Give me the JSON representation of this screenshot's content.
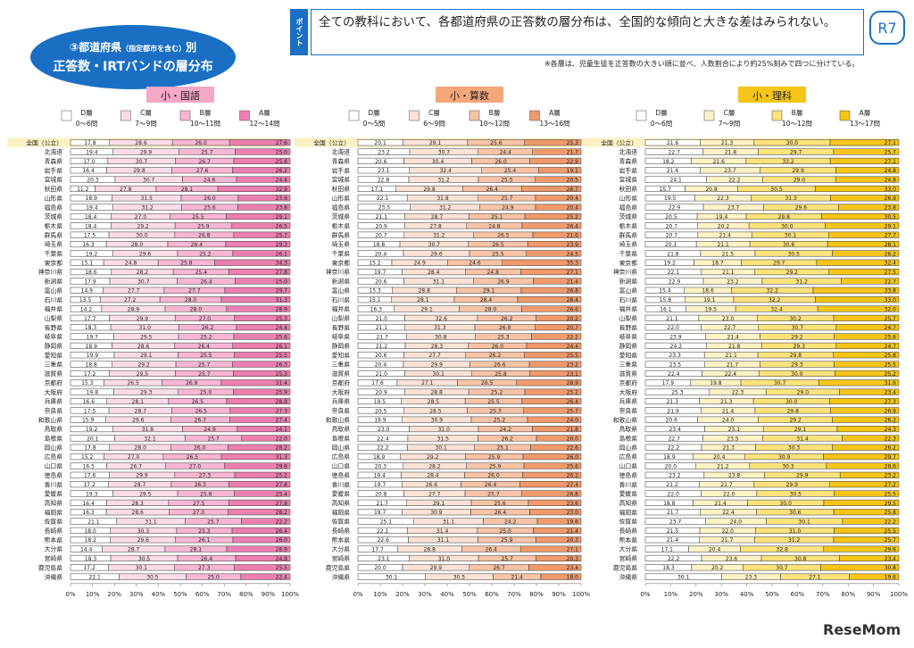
{
  "header": {
    "badge_line1_num": "③",
    "badge_line1_main": "都道府県",
    "badge_line1_small": "（指定都市を含む）",
    "badge_line1_end": "別",
    "badge_line2": "正答数・IRTバンドの層分布",
    "point_label": "ポイント",
    "point_text": "全ての教科において、各都道府県の正答数の層分布は、全国的な傾向と大きな差はみられない。",
    "badge_r7": "R7",
    "footnote": "※各層は、児童生徒を正答数の大きい順に並べ、人数割合により約25%刻みで四つに分けている。",
    "logo": "ReseMom"
  },
  "prefectures": [
    "全国（公立）",
    "北海道",
    "青森県",
    "岩手県",
    "宮城県",
    "秋田県",
    "山形県",
    "福島県",
    "茨城県",
    "栃木県",
    "群馬県",
    "埼玉県",
    "千葉県",
    "東京都",
    "神奈川県",
    "新潟県",
    "富山県",
    "石川県",
    "福井県",
    "山梨県",
    "長野県",
    "岐阜県",
    "静岡県",
    "愛知県",
    "三重県",
    "滋賀県",
    "京都府",
    "大阪府",
    "兵庫県",
    "奈良県",
    "和歌山県",
    "鳥取県",
    "島根県",
    "岡山県",
    "広島県",
    "山口県",
    "徳島県",
    "香川県",
    "愛媛県",
    "高知県",
    "福岡県",
    "佐賀県",
    "長崎県",
    "熊本県",
    "大分県",
    "宮崎県",
    "鹿児島県",
    "沖縄県"
  ],
  "axis_ticks": [
    "0%",
    "10%",
    "20%",
    "30%",
    "40%",
    "50%",
    "60%",
    "70%",
    "80%",
    "90%",
    "100%"
  ],
  "chart_data": [
    {
      "type": "bar",
      "title": "小・国語",
      "title_color": "#f4a7c6",
      "colors": [
        "#ffffff",
        "#fcdbe9",
        "#f7b6d1",
        "#ec7fb0"
      ],
      "legend": [
        {
          "layer": "D層",
          "range": "0～6問"
        },
        {
          "layer": "C層",
          "range": "7～9問"
        },
        {
          "layer": "B層",
          "range": "10～11問"
        },
        {
          "layer": "A層",
          "range": "12～14問"
        }
      ],
      "xlim": [
        0,
        100
      ],
      "values": [
        [
          17.8,
          28.6,
          26.0,
          27.6
        ],
        [
          19.4,
          29.9,
          25.7,
          25.0
        ],
        [
          17.0,
          30.7,
          26.7,
          25.6
        ],
        [
          16.4,
          29.8,
          27.6,
          26.2
        ],
        [
          20.3,
          30.7,
          24.6,
          24.4
        ],
        [
          11.2,
          27.8,
          28.1,
          32.9
        ],
        [
          18.9,
          31.5,
          26.0,
          23.6
        ],
        [
          19.4,
          31.2,
          25.6,
          23.8
        ],
        [
          18.4,
          27.0,
          25.5,
          29.1
        ],
        [
          18.4,
          29.2,
          25.9,
          26.5
        ],
        [
          17.5,
          30.0,
          26.8,
          25.7
        ],
        [
          16.3,
          28.0,
          26.4,
          29.3
        ],
        [
          19.2,
          29.6,
          25.2,
          26.1
        ],
        [
          15.1,
          24.8,
          25.8,
          34.3
        ],
        [
          18.6,
          28.2,
          25.4,
          27.8
        ],
        [
          17.9,
          30.7,
          26.4,
          25.0
        ],
        [
          14.9,
          27.7,
          27.7,
          29.7
        ],
        [
          13.5,
          27.2,
          28.0,
          31.3
        ],
        [
          14.2,
          28.9,
          28.0,
          28.9
        ],
        [
          17.7,
          29.9,
          27.0,
          25.3
        ],
        [
          18.3,
          31.0,
          26.2,
          24.4
        ],
        [
          19.7,
          29.5,
          25.2,
          25.6
        ],
        [
          18.9,
          28.6,
          26.4,
          26.1
        ],
        [
          19.9,
          29.1,
          25.5,
          25.5
        ],
        [
          18.8,
          29.2,
          25.7,
          26.3
        ],
        [
          17.2,
          29.5,
          25.7,
          25.3
        ],
        [
          15.3,
          26.5,
          26.9,
          31.4
        ],
        [
          19.8,
          29.3,
          25.0,
          25.9
        ],
        [
          16.6,
          28.1,
          26.5,
          28.9
        ],
        [
          17.5,
          28.7,
          26.5,
          27.3
        ],
        [
          15.9,
          29.6,
          26.7,
          27.4
        ],
        [
          19.2,
          31.8,
          24.9,
          24.1
        ],
        [
          20.1,
          32.1,
          25.7,
          22.0
        ],
        [
          17.8,
          28.0,
          26.0,
          28.2
        ],
        [
          15.2,
          27.0,
          26.5,
          31.3
        ],
        [
          16.5,
          26.7,
          27.0,
          29.8
        ],
        [
          17.6,
          29.9,
          27.3,
          25.2
        ],
        [
          17.2,
          28.7,
          26.3,
          27.8
        ],
        [
          19.3,
          29.5,
          25.8,
          25.4
        ],
        [
          16.4,
          28.3,
          27.5,
          27.8
        ],
        [
          16.3,
          28.6,
          27.0,
          28.2
        ],
        [
          21.1,
          31.1,
          25.7,
          22.2
        ],
        [
          18.0,
          30.3,
          25.3,
          26.4
        ],
        [
          18.2,
          29.6,
          26.1,
          26.0
        ],
        [
          14.4,
          28.7,
          28.1,
          28.9
        ],
        [
          18.3,
          30.5,
          26.4,
          24.8
        ],
        [
          17.2,
          30.1,
          27.3,
          25.5
        ],
        [
          22.1,
          30.5,
          25.0,
          22.4
        ]
      ]
    },
    {
      "type": "bar",
      "title": "小・算数",
      "title_color": "#f5a77a",
      "colors": [
        "#ffffff",
        "#fbe2d4",
        "#f7c3a6",
        "#f09a6c"
      ],
      "legend": [
        {
          "layer": "D層",
          "range": "0～5問"
        },
        {
          "layer": "C層",
          "range": "6～9問"
        },
        {
          "layer": "B層",
          "range": "10～12問"
        },
        {
          "layer": "A層",
          "range": "13～16問"
        }
      ],
      "xlim": [
        0,
        100
      ],
      "values": [
        [
          20.1,
          29.1,
          25.6,
          25.3
        ],
        [
          23.2,
          30.7,
          24.4,
          21.7
        ],
        [
          20.6,
          30.4,
          26.0,
          22.9
        ],
        [
          23.1,
          32.4,
          25.4,
          19.1
        ],
        [
          22.8,
          31.2,
          25.5,
          20.5
        ],
        [
          17.1,
          29.8,
          26.4,
          26.7
        ],
        [
          22.1,
          31.8,
          25.7,
          20.4
        ],
        [
          23.5,
          31.2,
          24.9,
          20.4
        ],
        [
          21.1,
          28.7,
          25.1,
          25.2
        ],
        [
          20.9,
          27.8,
          24.8,
          26.4
        ],
        [
          20.7,
          31.2,
          26.5,
          21.6
        ],
        [
          18.8,
          30.7,
          26.5,
          23.9
        ],
        [
          20.4,
          29.6,
          25.5,
          24.5
        ],
        [
          15.2,
          24.9,
          24.6,
          35.3
        ],
        [
          19.7,
          28.4,
          24.8,
          27.1
        ],
        [
          20.6,
          31.1,
          26.9,
          21.4
        ],
        [
          15.3,
          28.8,
          29.1,
          26.8
        ],
        [
          15.1,
          28.1,
          28.4,
          28.4
        ],
        [
          16.3,
          29.1,
          28.0,
          26.6
        ],
        [
          21.0,
          32.6,
          26.2,
          20.2
        ],
        [
          21.1,
          31.3,
          26.9,
          20.7
        ],
        [
          21.7,
          30.8,
          25.3,
          22.2
        ],
        [
          21.2,
          28.3,
          26.0,
          24.4
        ],
        [
          20.6,
          27.7,
          26.2,
          25.5
        ],
        [
          20.4,
          29.9,
          26.6,
          23.2
        ],
        [
          21.0,
          30.1,
          25.8,
          23.1
        ],
        [
          17.6,
          27.1,
          26.5,
          28.9
        ],
        [
          20.9,
          28.8,
          25.2,
          25.2
        ],
        [
          19.5,
          28.5,
          25.5,
          26.4
        ],
        [
          20.5,
          28.5,
          25.3,
          25.7
        ],
        [
          19.9,
          30.9,
          25.2,
          24.0
        ],
        [
          23.0,
          31.0,
          24.2,
          21.8
        ],
        [
          22.4,
          31.5,
          26.2,
          20.0
        ],
        [
          22.2,
          30.1,
          25.1,
          22.6
        ],
        [
          18.9,
          29.2,
          25.9,
          26.0
        ],
        [
          20.3,
          28.2,
          25.9,
          25.6
        ],
        [
          19.4,
          28.4,
          26.0,
          26.2
        ],
        [
          19.7,
          26.6,
          26.4,
          27.4
        ],
        [
          20.8,
          27.7,
          25.7,
          26.8
        ],
        [
          21.7,
          29.1,
          25.6,
          23.6
        ],
        [
          19.7,
          30.9,
          26.4,
          23.0
        ],
        [
          25.1,
          31.1,
          24.2,
          19.6
        ],
        [
          22.1,
          31.4,
          25.0,
          21.4
        ],
        [
          22.6,
          31.1,
          25.9,
          20.3
        ],
        [
          17.7,
          28.8,
          26.4,
          27.1
        ],
        [
          23.1,
          31.0,
          25.7,
          20.3
        ],
        [
          20.0,
          29.9,
          26.7,
          23.4
        ],
        [
          30.1,
          30.5,
          21.4,
          18.0
        ]
      ]
    },
    {
      "type": "bar",
      "title": "小・理科",
      "title_color": "#f5c518",
      "colors": [
        "#ffffff",
        "#fff2c4",
        "#fde27a",
        "#f5c518"
      ],
      "legend": [
        {
          "layer": "D層",
          "range": "0～6問"
        },
        {
          "layer": "C層",
          "range": "7～9問"
        },
        {
          "layer": "B層",
          "range": "10～12問"
        },
        {
          "layer": "A層",
          "range": "13～17問"
        }
      ],
      "xlim": [
        0,
        100
      ],
      "values": [
        [
          21.6,
          21.3,
          30.0,
          27.1
        ],
        [
          22.7,
          21.8,
          29.7,
          25.7
        ],
        [
          18.2,
          21.6,
          33.2,
          27.1
        ],
        [
          21.6,
          23.7,
          29.9,
          24.8
        ],
        [
          24.1,
          22.2,
          29.0,
          24.8
        ],
        [
          15.7,
          20.8,
          30.5,
          33.0
        ],
        [
          19.5,
          22.3,
          31.3,
          26.9
        ],
        [
          22.9,
          23.7,
          29.6,
          23.8
        ],
        [
          20.5,
          19.4,
          29.8,
          30.5
        ],
        [
          20.7,
          20.2,
          30.0,
          29.1
        ],
        [
          20.7,
          21.4,
          30.1,
          27.7
        ],
        [
          20.1,
          21.1,
          30.6,
          28.1
        ],
        [
          21.8,
          21.5,
          30.5,
          26.2
        ],
        [
          19.2,
          18.7,
          29.7,
          32.4
        ],
        [
          22.1,
          21.1,
          29.2,
          27.5
        ],
        [
          22.9,
          23.2,
          31.2,
          22.7
        ],
        [
          15.4,
          18.6,
          32.2,
          33.8
        ],
        [
          15.8,
          19.1,
          32.2,
          33.0
        ],
        [
          16.1,
          19.5,
          32.4,
          32.0
        ],
        [
          21.1,
          23.0,
          30.2,
          25.7
        ],
        [
          22.0,
          22.7,
          30.7,
          24.7
        ],
        [
          23.9,
          21.4,
          29.2,
          25.6
        ],
        [
          24.2,
          21.8,
          29.3,
          24.7
        ],
        [
          23.3,
          21.1,
          29.8,
          25.8
        ],
        [
          23.5,
          21.7,
          29.3,
          25.5
        ],
        [
          22.4,
          22.4,
          30.0,
          25.2
        ],
        [
          17.9,
          19.8,
          30.7,
          31.6
        ],
        [
          25.3,
          22.3,
          29.0,
          23.4
        ],
        [
          21.3,
          21.3,
          30.0,
          27.3
        ],
        [
          21.9,
          21.4,
          29.8,
          26.9
        ],
        [
          20.6,
          24.0,
          29.2,
          26.2
        ],
        [
          23.4,
          23.1,
          29.1,
          24.3
        ],
        [
          22.7,
          23.5,
          31.4,
          22.3
        ],
        [
          22.2,
          21.3,
          30.3,
          26.2
        ],
        [
          18.9,
          20.4,
          30.9,
          29.7
        ],
        [
          20.0,
          21.2,
          30.3,
          28.6
        ],
        [
          23.2,
          23.8,
          29.9,
          23.2
        ],
        [
          21.2,
          21.7,
          29.9,
          27.2
        ],
        [
          22.0,
          22.0,
          30.5,
          25.5
        ],
        [
          18.8,
          21.4,
          30.0,
          29.5
        ],
        [
          21.7,
          22.4,
          30.6,
          25.8
        ],
        [
          23.7,
          24.0,
          30.1,
          22.2
        ],
        [
          21.5,
          22.0,
          31.0,
          25.5
        ],
        [
          21.4,
          21.7,
          31.2,
          25.7
        ],
        [
          17.1,
          20.4,
          32.8,
          29.6
        ],
        [
          22.2,
          23.6,
          30.8,
          23.4
        ],
        [
          18.3,
          20.2,
          30.7,
          30.8
        ],
        [
          30.1,
          23.3,
          27.1,
          19.6
        ]
      ]
    }
  ]
}
